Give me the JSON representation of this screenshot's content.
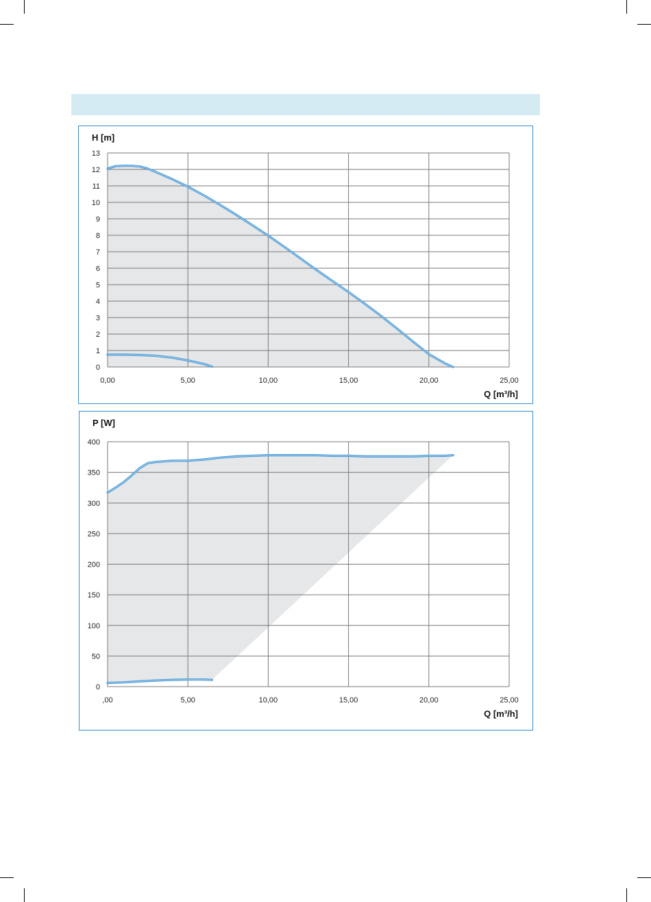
{
  "colors": {
    "band": "#d4ebf4",
    "frame": "#3a8cc8",
    "fill": "#e5e7e8",
    "curve": "#4a9ad6",
    "curve_highlight": "#a9d2ef",
    "grid": "#7a7a7a"
  },
  "chart_data": [
    {
      "type": "area",
      "ylabel": "H [m]",
      "xlabel": "Q [m³/h]",
      "xlim": [
        0,
        25
      ],
      "ylim": [
        0,
        13
      ],
      "x_ticks": [
        "0,00",
        "5,00",
        "10,00",
        "15,00",
        "20,00",
        "25,00"
      ],
      "y_ticks": [
        "0",
        "1",
        "2",
        "3",
        "4",
        "5",
        "6",
        "7",
        "8",
        "9",
        "10",
        "11",
        "12",
        "13"
      ],
      "grid": true,
      "series": [
        {
          "x": [
            0,
            0.5,
            1,
            1.5,
            2,
            2.5,
            3,
            4,
            5,
            6,
            7,
            8,
            9,
            10,
            11,
            12,
            13,
            14,
            15,
            16,
            17,
            18,
            19,
            20,
            21,
            21.5
          ],
          "values": [
            12.05,
            12.2,
            12.22,
            12.22,
            12.18,
            12.05,
            11.85,
            11.42,
            10.95,
            10.42,
            9.85,
            9.25,
            8.62,
            7.98,
            7.3,
            6.6,
            5.9,
            5.22,
            4.55,
            3.85,
            3.12,
            2.35,
            1.55,
            0.78,
            0.22,
            0
          ]
        },
        {
          "x": [
            0,
            1,
            2,
            3,
            4,
            5,
            6,
            6.5
          ],
          "values": [
            0.75,
            0.75,
            0.73,
            0.68,
            0.57,
            0.4,
            0.18,
            0.02
          ]
        }
      ]
    },
    {
      "type": "area",
      "ylabel": "P [W]",
      "xlabel": "Q [m³/h]",
      "xlim": [
        0,
        25
      ],
      "ylim": [
        0,
        400
      ],
      "x_ticks": [
        ",00",
        "5,00",
        "10,00",
        "15,00",
        "20,00",
        "25,00"
      ],
      "y_ticks": [
        "0",
        "50",
        "100",
        "150",
        "200",
        "250",
        "300",
        "350",
        "400"
      ],
      "grid": true,
      "series": [
        {
          "x": [
            0,
            0.5,
            1,
            1.5,
            2,
            2.5,
            3,
            4,
            5,
            6,
            7,
            8,
            9,
            10,
            11,
            12,
            13,
            14,
            15,
            16,
            17,
            18,
            19,
            20,
            21,
            21.5
          ],
          "values": [
            317,
            325,
            334,
            345,
            357,
            365,
            367,
            369,
            369,
            371,
            374,
            376,
            377,
            378,
            378,
            378,
            378,
            377,
            377,
            376,
            376,
            376,
            376,
            377,
            377,
            378
          ]
        },
        {
          "x": [
            0,
            1,
            2,
            3,
            4,
            5,
            6,
            6.5
          ],
          "values": [
            6,
            7,
            8.5,
            10,
            11,
            11.5,
            11.5,
            11
          ]
        }
      ]
    }
  ]
}
